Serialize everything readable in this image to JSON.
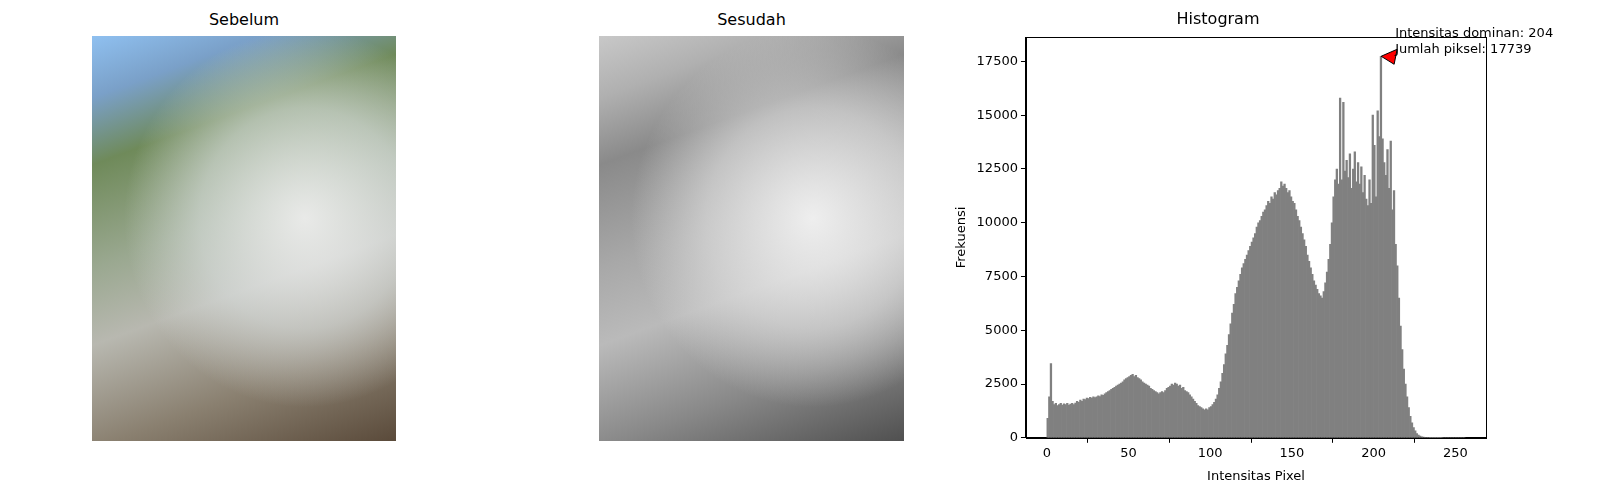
{
  "images": [
    {
      "title": "Sebelum"
    },
    {
      "title": "Sesudah"
    }
  ],
  "chart_data": {
    "type": "histogram",
    "title": "Histogram",
    "x_label": "Intensitas Pixel",
    "y_label": "Frekuensi",
    "color": "#808080",
    "grid": false,
    "xlim": [
      -12.8,
      268.8
    ],
    "xticks": [
      0,
      50,
      100,
      150,
      200,
      250
    ],
    "ylim": [
      0,
      18626
    ],
    "yticks": [
      0,
      2500,
      5000,
      7500,
      10000,
      12500,
      15000,
      17500
    ],
    "bins": [
      0,
      1,
      2,
      3,
      4,
      5,
      6,
      7,
      8,
      9,
      10,
      11,
      12,
      13,
      14,
      15,
      16,
      17,
      18,
      19,
      20,
      21,
      22,
      23,
      24,
      25,
      26,
      27,
      28,
      29,
      30,
      31,
      32,
      33,
      34,
      35,
      36,
      37,
      38,
      39,
      40,
      41,
      42,
      43,
      44,
      45,
      46,
      47,
      48,
      49,
      50,
      51,
      52,
      53,
      54,
      55,
      56,
      57,
      58,
      59,
      60,
      61,
      62,
      63,
      64,
      65,
      66,
      67,
      68,
      69,
      70,
      71,
      72,
      73,
      74,
      75,
      76,
      77,
      78,
      79,
      80,
      81,
      82,
      83,
      84,
      85,
      86,
      87,
      88,
      89,
      90,
      91,
      92,
      93,
      94,
      95,
      96,
      97,
      98,
      99,
      100,
      101,
      102,
      103,
      104,
      105,
      106,
      107,
      108,
      109,
      110,
      111,
      112,
      113,
      114,
      115,
      116,
      117,
      118,
      119,
      120,
      121,
      122,
      123,
      124,
      125,
      126,
      127,
      128,
      129,
      130,
      131,
      132,
      133,
      134,
      135,
      136,
      137,
      138,
      139,
      140,
      141,
      142,
      143,
      144,
      145,
      146,
      147,
      148,
      149,
      150,
      151,
      152,
      153,
      154,
      155,
      156,
      157,
      158,
      159,
      160,
      161,
      162,
      163,
      164,
      165,
      166,
      167,
      168,
      169,
      170,
      171,
      172,
      173,
      174,
      175,
      176,
      177,
      178,
      179,
      180,
      181,
      182,
      183,
      184,
      185,
      186,
      187,
      188,
      189,
      190,
      191,
      192,
      193,
      194,
      195,
      196,
      197,
      198,
      199,
      200,
      201,
      202,
      203,
      204,
      205,
      206,
      207,
      208,
      209,
      210,
      211,
      212,
      213,
      214,
      215,
      216,
      217,
      218,
      219,
      220,
      221,
      222,
      223,
      224,
      225,
      226,
      227,
      228,
      229,
      230,
      231,
      232,
      233,
      234,
      235,
      236,
      237,
      238,
      239,
      240,
      241,
      242,
      243,
      244,
      245,
      246,
      247,
      248,
      249,
      250,
      251,
      252,
      253,
      254,
      255,
      256
    ],
    "values": [
      900,
      1900,
      3450,
      1700,
      1550,
      1600,
      1500,
      1550,
      1600,
      1520,
      1580,
      1550,
      1600,
      1520,
      1570,
      1600,
      1550,
      1620,
      1700,
      1650,
      1750,
      1700,
      1800,
      1780,
      1850,
      1820,
      1880,
      1850,
      1900,
      1870,
      1900,
      1950,
      1920,
      2000,
      1980,
      2050,
      2100,
      2150,
      2200,
      2250,
      2300,
      2350,
      2400,
      2450,
      2500,
      2550,
      2600,
      2700,
      2750,
      2800,
      2850,
      2900,
      2950,
      2850,
      2900,
      2800,
      2750,
      2700,
      2600,
      2550,
      2500,
      2450,
      2400,
      2300,
      2250,
      2200,
      2150,
      2100,
      2050,
      2100,
      2150,
      2100,
      2200,
      2300,
      2350,
      2400,
      2500,
      2450,
      2550,
      2500,
      2400,
      2450,
      2300,
      2350,
      2200,
      2150,
      2100,
      2000,
      1900,
      1800,
      1700,
      1600,
      1500,
      1450,
      1400,
      1350,
      1300,
      1350,
      1300,
      1400,
      1450,
      1550,
      1650,
      1800,
      2000,
      2300,
      2600,
      3000,
      3400,
      3900,
      4300,
      4800,
      5300,
      5800,
      6200,
      6700,
      7000,
      7300,
      7600,
      7900,
      8100,
      8300,
      8500,
      8700,
      8900,
      9100,
      9300,
      9500,
      9800,
      10000,
      10100,
      10300,
      10500,
      10600,
      10800,
      11000,
      10900,
      11200,
      11100,
      11400,
      11300,
      11500,
      11600,
      11900,
      11700,
      11800,
      11600,
      11400,
      11500,
      11200,
      11000,
      10900,
      10600,
      10300,
      10100,
      9800,
      9500,
      9200,
      8900,
      8500,
      8200,
      7900,
      7600,
      7300,
      7100,
      6900,
      6700,
      6600,
      6500,
      6800,
      7200,
      7700,
      8300,
      9000,
      10000,
      11200,
      12000,
      12500,
      11800,
      15800,
      12000,
      15600,
      12400,
      12900,
      12100,
      13200,
      11600,
      12500,
      13300,
      11900,
      12800,
      11800,
      12600,
      11400,
      12200,
      11100,
      10800,
      12000,
      10900,
      15000,
      13600,
      11200,
      15200,
      14000,
      17739,
      13900,
      12800,
      12200,
      13400,
      11600,
      13800,
      10600,
      11500,
      9000,
      8000,
      6500,
      5200,
      4100,
      3200,
      2500,
      1900,
      1400,
      1000,
      700,
      480,
      320,
      200,
      130,
      80,
      50,
      35,
      25,
      18,
      12,
      8,
      6,
      4,
      3,
      2,
      1,
      1,
      1,
      0,
      0,
      0,
      0,
      0,
      0,
      0,
      0,
      0,
      0,
      0,
      0,
      0,
      0
    ],
    "annotation": {
      "x": 204,
      "y": 17739,
      "text": [
        "Intensitas dominan: 204",
        "Jumlah piksel: 17739"
      ],
      "color": "#ff0000"
    }
  }
}
